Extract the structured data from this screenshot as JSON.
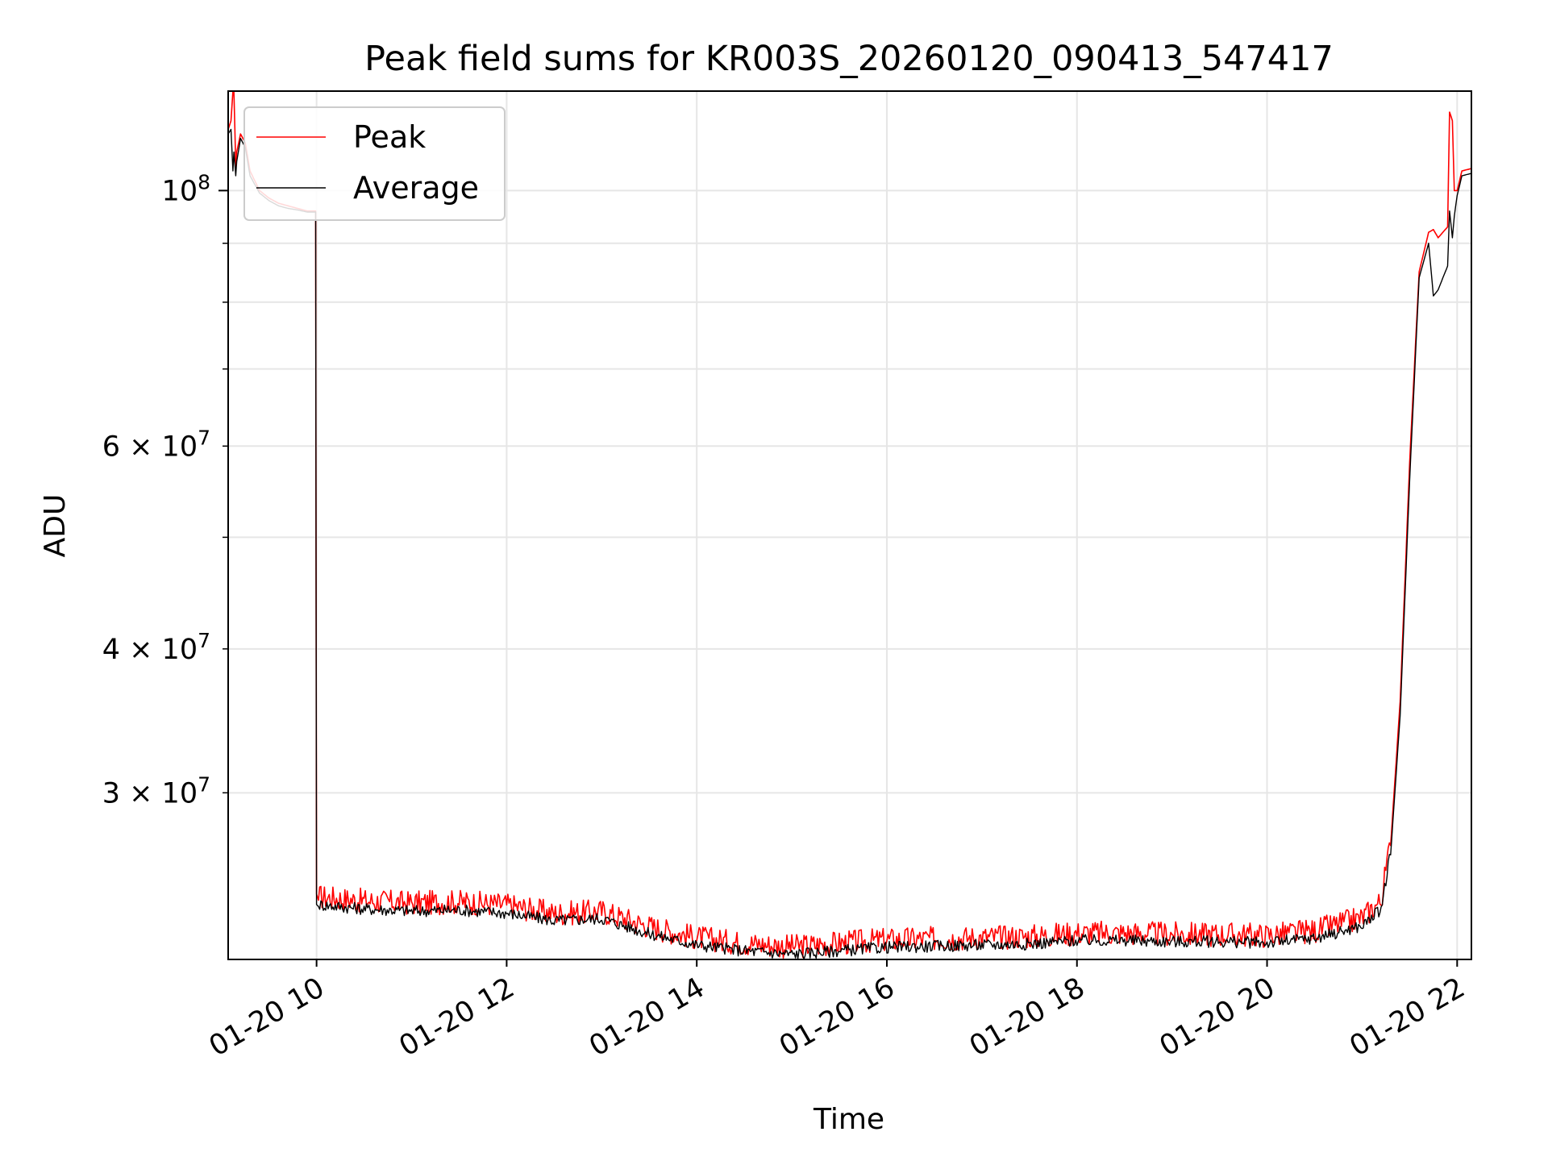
{
  "chart_data": {
    "type": "line",
    "title": "Peak field sums for KR003S_20260120_090413_547417",
    "xlabel": "Time",
    "ylabel": "ADU",
    "yscale": "log",
    "xlim": [
      9.07,
      22.15
    ],
    "ylim": [
      21500000,
      122000000
    ],
    "grid": true,
    "legend_position": "top-left",
    "x_ticks": [
      {
        "value": 10,
        "label": "01-20 10"
      },
      {
        "value": 12,
        "label": "01-20 12"
      },
      {
        "value": 14,
        "label": "01-20 14"
      },
      {
        "value": 16,
        "label": "01-20 16"
      },
      {
        "value": 18,
        "label": "01-20 18"
      },
      {
        "value": 20,
        "label": "01-20 20"
      },
      {
        "value": 22,
        "label": "01-20 22"
      }
    ],
    "y_major_ticks": [
      {
        "value": 100000000,
        "base": "10",
        "exp": "8"
      }
    ],
    "y_minor_ticks": [
      {
        "value": 30000000,
        "mantissa": "3",
        "base": "10",
        "exp": "7"
      },
      {
        "value": 40000000,
        "mantissa": "4",
        "base": "10",
        "exp": "7"
      },
      {
        "value": 60000000,
        "mantissa": "6",
        "base": "10",
        "exp": "7"
      }
    ],
    "y_minor_unlabeled": [
      50000000,
      70000000,
      80000000,
      90000000
    ],
    "series": [
      {
        "name": "Peak",
        "color": "#ff0000",
        "x": [
          9.07,
          9.1,
          9.12,
          9.13,
          9.15,
          9.16,
          9.2,
          9.25,
          9.3,
          9.4,
          9.5,
          9.6,
          9.7,
          9.8,
          9.9,
          9.99,
          10.0,
          10.02,
          10.5,
          11.0,
          11.5,
          12.0,
          12.5,
          13.0,
          13.5,
          14.0,
          14.5,
          15.0,
          15.5,
          16.0,
          16.5,
          17.0,
          17.5,
          18.0,
          18.5,
          19.0,
          19.5,
          20.0,
          20.5,
          21.0,
          21.2,
          21.3,
          21.4,
          21.5,
          21.6,
          21.7,
          21.75,
          21.8,
          21.85,
          21.9,
          21.92,
          21.95,
          21.97,
          22.0,
          22.05,
          22.15
        ],
        "values": [
          113000000,
          115000000,
          122000000,
          122000000,
          105000000,
          108000000,
          112000000,
          110000000,
          104000000,
          100000000,
          98500000,
          97500000,
          97000000,
          96500000,
          96000000,
          96000000,
          24500000,
          24200000,
          24000000,
          23900000,
          23950000,
          23800000,
          23400000,
          23500000,
          22800000,
          22300000,
          22050000,
          21900000,
          22050000,
          22200000,
          22250000,
          22300000,
          22350000,
          22500000,
          22500000,
          22450000,
          22450000,
          22400000,
          22600000,
          23200000,
          24000000,
          27000000,
          36000000,
          58000000,
          85000000,
          92000000,
          92500000,
          91000000,
          92000000,
          93000000,
          117000000,
          115000000,
          100000000,
          100000000,
          104000000,
          104500000
        ]
      },
      {
        "name": "Average",
        "color": "#000000",
        "x": [
          9.07,
          9.1,
          9.12,
          9.13,
          9.15,
          9.16,
          9.2,
          9.25,
          9.3,
          9.4,
          9.5,
          9.6,
          9.7,
          9.8,
          9.9,
          9.99,
          10.0,
          10.02,
          10.5,
          11.0,
          11.5,
          12.0,
          12.5,
          13.0,
          13.5,
          14.0,
          14.5,
          15.0,
          15.5,
          16.0,
          16.5,
          17.0,
          17.5,
          18.0,
          18.5,
          19.0,
          19.5,
          20.0,
          20.5,
          21.0,
          21.2,
          21.3,
          21.4,
          21.5,
          21.6,
          21.7,
          21.75,
          21.8,
          21.85,
          21.9,
          21.92,
          21.95,
          21.97,
          22.0,
          22.05,
          22.15
        ],
        "values": [
          112000000,
          113000000,
          104000000,
          108000000,
          103000000,
          106000000,
          111000000,
          109000000,
          103000000,
          99500000,
          98000000,
          97000000,
          96500000,
          96200000,
          95800000,
          95800000,
          24000000,
          23900000,
          23700000,
          23600000,
          23650000,
          23500000,
          23150000,
          23250000,
          22550000,
          22050000,
          21800000,
          21650000,
          21800000,
          21950000,
          22000000,
          22050000,
          22100000,
          22250000,
          22250000,
          22200000,
          22200000,
          22150000,
          22350000,
          22900000,
          23700000,
          26500000,
          35000000,
          56000000,
          84000000,
          90000000,
          81000000,
          82000000,
          84000000,
          86000000,
          96000000,
          91000000,
          95000000,
          99000000,
          103000000,
          103500000
        ]
      }
    ]
  }
}
